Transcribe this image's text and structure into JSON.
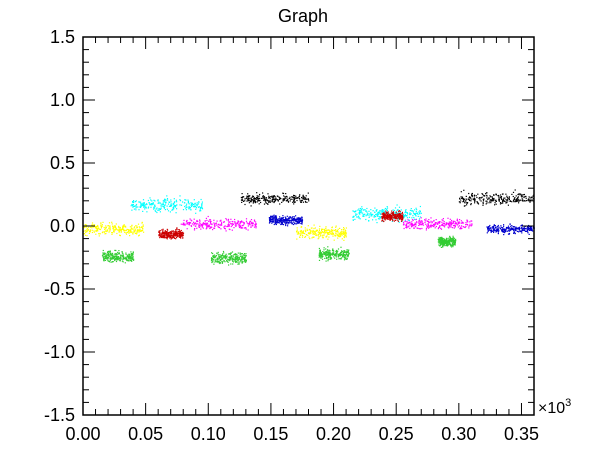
{
  "chart_data": {
    "type": "scatter",
    "title": "Graph",
    "xlabel": "",
    "ylabel": "",
    "xlim": [
      0,
      0.36
    ],
    "ylim": [
      -1.5,
      1.5
    ],
    "x_multiplier_label": "×10",
    "x_multiplier_exponent": "3",
    "x_ticks": [
      0.0,
      0.05,
      0.1,
      0.15,
      0.2,
      0.25,
      0.3,
      0.35
    ],
    "x_tick_labels": [
      "0.00",
      "0.05",
      "0.10",
      "0.15",
      "0.20",
      "0.25",
      "0.30",
      "0.35"
    ],
    "y_ticks": [
      -1.5,
      -1.0,
      -0.5,
      0.0,
      0.5,
      1.0,
      1.5
    ],
    "y_tick_labels": [
      "-1.5",
      "-1.0",
      "-0.5",
      "0.0",
      "0.5",
      "1.0",
      "1.5"
    ],
    "grid": false,
    "series": [
      {
        "name": "yellow",
        "color": "#ffff00",
        "clusters": [
          {
            "x": [
              0.0,
              0.048
            ],
            "y": -0.02,
            "spread": 0.08
          },
          {
            "x": [
              0.17,
              0.21
            ],
            "y": -0.05,
            "spread": 0.08
          }
        ]
      },
      {
        "name": "green",
        "color": "#33cc33",
        "clusters": [
          {
            "x": [
              0.015,
              0.04
            ],
            "y": -0.24,
            "spread": 0.07
          },
          {
            "x": [
              0.102,
              0.13
            ],
            "y": -0.25,
            "spread": 0.08
          },
          {
            "x": [
              0.188,
              0.212
            ],
            "y": -0.22,
            "spread": 0.07
          },
          {
            "x": [
              0.283,
              0.297
            ],
            "y": -0.12,
            "spread": 0.06
          }
        ]
      },
      {
        "name": "cyan",
        "color": "#00ffff",
        "clusters": [
          {
            "x": [
              0.038,
              0.095
            ],
            "y": 0.17,
            "spread": 0.09
          },
          {
            "x": [
              0.215,
              0.27
            ],
            "y": 0.1,
            "spread": 0.09
          }
        ]
      },
      {
        "name": "red",
        "color": "#cc0000",
        "clusters": [
          {
            "x": [
              0.06,
              0.08
            ],
            "y": -0.06,
            "spread": 0.06
          },
          {
            "x": [
              0.238,
              0.255
            ],
            "y": 0.08,
            "spread": 0.06
          }
        ]
      },
      {
        "name": "magenta",
        "color": "#ff00ff",
        "clusters": [
          {
            "x": [
              0.078,
              0.138
            ],
            "y": 0.02,
            "spread": 0.07
          },
          {
            "x": [
              0.255,
              0.31
            ],
            "y": 0.02,
            "spread": 0.07
          }
        ]
      },
      {
        "name": "black",
        "color": "#000000",
        "clusters": [
          {
            "x": [
              0.125,
              0.18
            ],
            "y": 0.22,
            "spread": 0.07
          },
          {
            "x": [
              0.3,
              0.36
            ],
            "y": 0.22,
            "spread": 0.08
          }
        ]
      },
      {
        "name": "blue",
        "color": "#0000cc",
        "clusters": [
          {
            "x": [
              0.148,
              0.175
            ],
            "y": 0.05,
            "spread": 0.06
          },
          {
            "x": [
              0.322,
              0.36
            ],
            "y": -0.02,
            "spread": 0.06
          }
        ]
      }
    ]
  }
}
